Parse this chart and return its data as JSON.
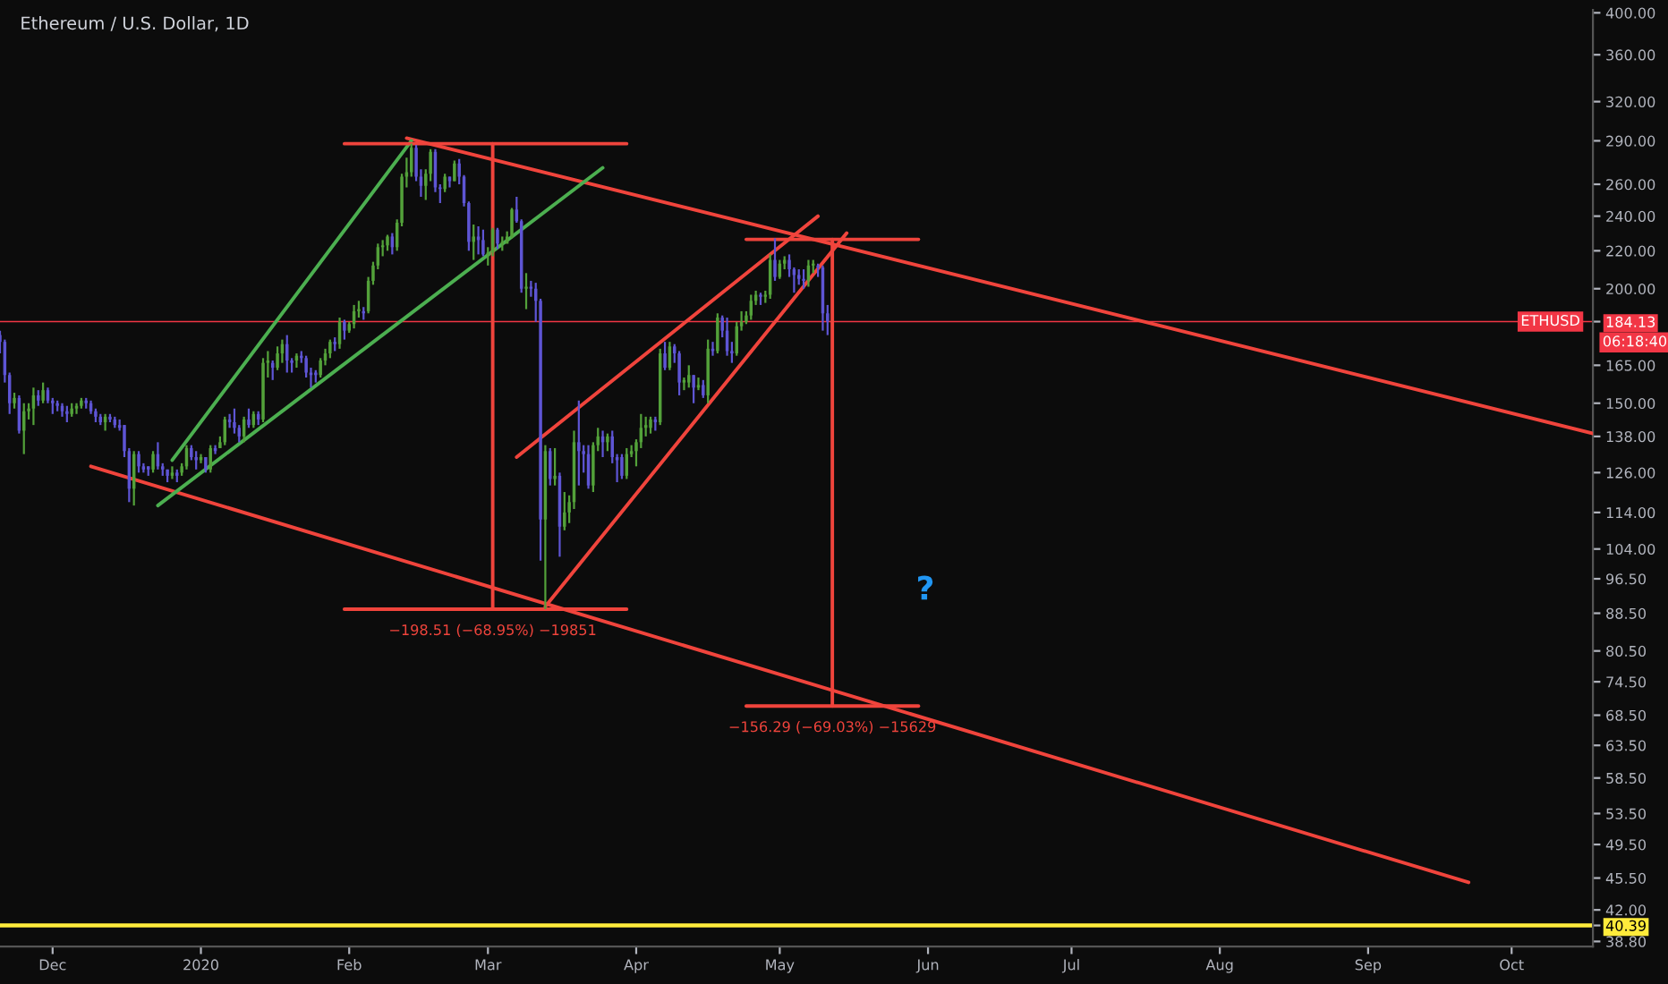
{
  "chart_data": {
    "type": "candlestick",
    "title": "Ethereum / U.S. Dollar, 1D",
    "x": [
      "2019-11-20",
      "2019-11-21",
      "2019-11-22",
      "2019-11-23",
      "2019-11-24",
      "2019-11-25",
      "2019-11-26",
      "2019-11-27",
      "2019-11-28",
      "2019-11-29",
      "2019-11-30",
      "2019-12-01",
      "2019-12-02",
      "2019-12-03",
      "2019-12-04",
      "2019-12-05",
      "2019-12-06",
      "2019-12-07",
      "2019-12-08",
      "2019-12-09",
      "2019-12-10",
      "2019-12-11",
      "2019-12-12",
      "2019-12-13",
      "2019-12-14",
      "2019-12-15",
      "2019-12-16",
      "2019-12-17",
      "2019-12-18",
      "2019-12-19",
      "2019-12-20",
      "2019-12-21",
      "2019-12-22",
      "2019-12-23",
      "2019-12-24",
      "2019-12-25",
      "2019-12-26",
      "2019-12-27",
      "2019-12-28",
      "2019-12-29",
      "2019-12-30",
      "2019-12-31",
      "2020-01-01",
      "2020-01-02",
      "2020-01-03",
      "2020-01-04",
      "2020-01-05",
      "2020-01-06",
      "2020-01-07",
      "2020-01-08",
      "2020-01-09",
      "2020-01-10",
      "2020-01-11",
      "2020-01-12",
      "2020-01-13",
      "2020-01-14",
      "2020-01-15",
      "2020-01-16",
      "2020-01-17",
      "2020-01-18",
      "2020-01-19",
      "2020-01-20",
      "2020-01-21",
      "2020-01-22",
      "2020-01-23",
      "2020-01-24",
      "2020-01-25",
      "2020-01-26",
      "2020-01-27",
      "2020-01-28",
      "2020-01-29",
      "2020-01-30",
      "2020-01-31",
      "2020-02-01",
      "2020-02-02",
      "2020-02-03",
      "2020-02-04",
      "2020-02-05",
      "2020-02-06",
      "2020-02-07",
      "2020-02-08",
      "2020-02-09",
      "2020-02-10",
      "2020-02-11",
      "2020-02-12",
      "2020-02-13",
      "2020-02-14",
      "2020-02-15",
      "2020-02-16",
      "2020-02-17",
      "2020-02-18",
      "2020-02-19",
      "2020-02-20",
      "2020-02-21",
      "2020-02-22",
      "2020-02-23",
      "2020-02-24",
      "2020-02-25",
      "2020-02-26",
      "2020-02-27",
      "2020-02-28",
      "2020-02-29",
      "2020-03-01",
      "2020-03-02",
      "2020-03-03",
      "2020-03-04",
      "2020-03-05",
      "2020-03-06",
      "2020-03-07",
      "2020-03-08",
      "2020-03-09",
      "2020-03-10",
      "2020-03-11",
      "2020-03-12",
      "2020-03-13",
      "2020-03-14",
      "2020-03-15",
      "2020-03-16",
      "2020-03-17",
      "2020-03-18",
      "2020-03-19",
      "2020-03-20",
      "2020-03-21",
      "2020-03-22",
      "2020-03-23",
      "2020-03-24",
      "2020-03-25",
      "2020-03-26",
      "2020-03-27",
      "2020-03-28",
      "2020-03-29",
      "2020-03-30",
      "2020-03-31",
      "2020-04-01",
      "2020-04-02",
      "2020-04-03",
      "2020-04-04",
      "2020-04-05",
      "2020-04-06",
      "2020-04-07",
      "2020-04-08",
      "2020-04-09",
      "2020-04-10",
      "2020-04-11",
      "2020-04-12",
      "2020-04-13",
      "2020-04-14",
      "2020-04-15",
      "2020-04-16",
      "2020-04-17",
      "2020-04-18",
      "2020-04-19",
      "2020-04-20",
      "2020-04-21",
      "2020-04-22",
      "2020-04-23",
      "2020-04-24",
      "2020-04-25",
      "2020-04-26",
      "2020-04-27",
      "2020-04-28",
      "2020-04-29",
      "2020-04-30",
      "2020-05-01",
      "2020-05-02",
      "2020-05-03",
      "2020-05-04",
      "2020-05-05",
      "2020-05-06",
      "2020-05-07",
      "2020-05-08",
      "2020-05-09",
      "2020-05-10",
      "2020-05-11"
    ],
    "ohlc": [
      [
        178,
        180,
        170,
        175
      ],
      [
        175,
        176,
        158,
        161
      ],
      [
        161,
        162,
        146,
        150
      ],
      [
        150,
        154,
        148,
        152
      ],
      [
        152,
        153,
        139,
        140
      ],
      [
        140,
        150,
        132,
        147
      ],
      [
        147,
        150,
        144,
        148
      ],
      [
        148,
        156,
        142,
        153
      ],
      [
        153,
        155,
        149,
        151
      ],
      [
        151,
        158,
        150,
        155
      ],
      [
        155,
        156,
        150,
        151
      ],
      [
        151,
        152,
        146,
        150
      ],
      [
        150,
        151,
        147,
        149
      ],
      [
        149,
        150,
        145,
        147
      ],
      [
        147,
        149,
        143,
        146
      ],
      [
        146,
        150,
        145,
        148
      ],
      [
        148,
        150,
        146,
        149
      ],
      [
        149,
        152,
        148,
        151
      ],
      [
        151,
        152,
        148,
        150
      ],
      [
        150,
        151,
        146,
        147
      ],
      [
        147,
        148,
        143,
        145
      ],
      [
        145,
        146,
        142,
        143
      ],
      [
        143,
        146,
        140,
        145
      ],
      [
        145,
        146,
        143,
        144
      ],
      [
        144,
        145,
        141,
        142
      ],
      [
        142,
        144,
        140,
        141
      ],
      [
        142,
        142,
        131,
        133
      ],
      [
        133,
        134,
        117,
        121
      ],
      [
        121,
        133,
        116,
        132
      ],
      [
        132,
        133,
        126,
        128
      ],
      [
        128,
        129,
        126,
        127
      ],
      [
        128,
        128,
        125,
        127
      ],
      [
        127,
        133,
        126,
        132
      ],
      [
        132,
        136,
        127,
        128
      ],
      [
        128,
        129,
        125,
        127
      ],
      [
        127,
        127,
        123,
        125
      ],
      [
        125,
        128,
        124,
        126
      ],
      [
        126,
        127,
        123,
        125
      ],
      [
        126,
        129,
        125,
        128
      ],
      [
        128,
        135,
        127,
        134
      ],
      [
        134,
        135,
        130,
        131
      ],
      [
        131,
        133,
        127,
        130
      ],
      [
        130,
        132,
        129,
        131
      ],
      [
        131,
        131,
        126,
        127
      ],
      [
        127,
        135,
        126,
        134
      ],
      [
        134,
        135,
        132,
        133
      ],
      [
        134,
        138,
        134,
        136
      ],
      [
        136,
        145,
        135,
        144
      ],
      [
        144,
        146,
        141,
        143
      ],
      [
        143,
        148,
        139,
        141
      ],
      [
        141,
        142,
        136,
        138
      ],
      [
        138,
        145,
        136,
        144
      ],
      [
        144,
        148,
        141,
        142
      ],
      [
        142,
        147,
        141,
        146
      ],
      [
        146,
        147,
        142,
        144
      ],
      [
        144,
        168,
        143,
        166
      ],
      [
        166,
        171,
        160,
        167
      ],
      [
        166,
        167,
        159,
        164
      ],
      [
        164,
        173,
        163,
        170
      ],
      [
        170,
        176,
        166,
        174
      ],
      [
        174,
        178,
        162,
        167
      ],
      [
        167,
        168,
        162,
        166
      ],
      [
        167,
        170,
        164,
        169
      ],
      [
        169,
        171,
        166,
        168
      ],
      [
        168,
        169,
        160,
        162
      ],
      [
        162,
        164,
        156,
        161
      ],
      [
        162,
        163,
        158,
        161
      ],
      [
        161,
        168,
        160,
        167
      ],
      [
        167,
        172,
        165,
        170
      ],
      [
        170,
        176,
        168,
        175
      ],
      [
        175,
        177,
        171,
        174
      ],
      [
        174,
        186,
        172,
        184
      ],
      [
        184,
        185,
        176,
        180
      ],
      [
        180,
        184,
        179,
        183
      ],
      [
        183,
        192,
        181,
        189
      ],
      [
        189,
        194,
        186,
        190
      ],
      [
        189,
        191,
        185,
        188
      ],
      [
        189,
        206,
        188,
        204
      ],
      [
        204,
        214,
        202,
        212
      ],
      [
        212,
        224,
        210,
        222
      ],
      [
        222,
        226,
        217,
        223
      ],
      [
        223,
        229,
        220,
        228
      ],
      [
        228,
        230,
        218,
        222
      ],
      [
        222,
        238,
        220,
        236
      ],
      [
        236,
        267,
        234,
        265
      ],
      [
        265,
        278,
        258,
        268
      ],
      [
        268,
        288,
        265,
        285
      ],
      [
        285,
        287,
        262,
        265
      ],
      [
        265,
        270,
        252,
        259
      ],
      [
        259,
        270,
        250,
        267
      ],
      [
        267,
        284,
        262,
        282
      ],
      [
        282,
        284,
        255,
        258
      ],
      [
        258,
        260,
        248,
        257
      ],
      [
        257,
        267,
        255,
        265
      ],
      [
        265,
        265,
        258,
        262
      ],
      [
        262,
        276,
        262,
        274
      ],
      [
        274,
        277,
        260,
        265
      ],
      [
        265,
        266,
        246,
        248
      ],
      [
        248,
        249,
        220,
        225
      ],
      [
        225,
        235,
        215,
        228
      ],
      [
        228,
        234,
        218,
        226
      ],
      [
        226,
        232,
        217,
        218
      ],
      [
        218,
        222,
        212,
        219
      ],
      [
        219,
        233,
        217,
        232
      ],
      [
        232,
        233,
        221,
        224
      ],
      [
        224,
        228,
        220,
        225
      ],
      [
        224,
        231,
        224,
        228
      ],
      [
        228,
        245,
        227,
        244
      ],
      [
        244,
        252,
        236,
        237
      ],
      [
        237,
        238,
        198,
        200
      ],
      [
        200,
        208,
        190,
        201
      ],
      [
        201,
        204,
        196,
        200
      ],
      [
        200,
        203,
        184,
        194
      ],
      [
        194,
        195,
        101,
        112
      ],
      [
        112,
        135,
        89.4,
        133
      ],
      [
        133,
        134,
        122,
        124
      ],
      [
        124,
        134,
        122,
        125
      ],
      [
        125,
        126,
        102,
        110
      ],
      [
        110,
        120,
        109,
        114
      ],
      [
        114,
        119,
        111,
        117
      ],
      [
        117,
        140,
        115,
        136
      ],
      [
        136,
        151,
        122,
        133
      ],
      [
        133,
        135,
        126,
        132
      ],
      [
        132,
        135,
        121,
        122
      ],
      [
        122,
        136,
        120,
        135
      ],
      [
        135,
        141,
        133,
        138
      ],
      [
        138,
        140,
        131,
        136
      ],
      [
        136,
        139,
        133,
        138
      ],
      [
        138,
        140,
        129,
        131
      ],
      [
        131,
        132,
        123,
        130
      ],
      [
        131,
        132,
        124,
        125
      ],
      [
        125,
        134,
        124,
        132
      ],
      [
        132,
        135,
        131,
        133
      ],
      [
        133,
        137,
        128,
        136
      ],
      [
        136,
        146,
        134,
        141
      ],
      [
        141,
        145,
        138,
        142
      ],
      [
        141,
        145,
        139,
        144
      ],
      [
        144,
        145,
        140,
        143
      ],
      [
        143,
        172,
        142,
        170
      ],
      [
        170,
        175,
        163,
        164
      ],
      [
        164,
        175,
        163,
        173
      ],
      [
        173,
        174,
        166,
        170
      ],
      [
        170,
        171,
        153,
        158
      ],
      [
        158,
        160,
        155,
        159
      ],
      [
        158,
        165,
        156,
        161
      ],
      [
        161,
        161,
        150,
        156
      ],
      [
        156,
        160,
        155,
        157
      ],
      [
        157,
        159,
        152,
        153
      ],
      [
        153,
        176,
        150,
        172
      ],
      [
        172,
        175,
        169,
        171
      ],
      [
        171,
        188,
        170,
        186
      ],
      [
        186,
        187,
        177,
        180
      ],
      [
        180,
        186,
        169,
        171
      ],
      [
        171,
        175,
        166,
        170
      ],
      [
        170,
        184,
        169,
        182
      ],
      [
        182,
        189,
        180,
        184
      ],
      [
        184,
        189,
        183,
        187
      ],
      [
        187,
        197,
        185,
        194
      ],
      [
        194,
        199,
        192,
        197
      ],
      [
        197,
        198,
        192,
        196
      ],
      [
        196,
        199,
        193,
        197
      ],
      [
        197,
        218,
        195,
        215
      ],
      [
        215,
        227,
        204,
        206
      ],
      [
        206,
        215,
        205,
        213
      ],
      [
        213,
        217,
        210,
        215
      ],
      [
        215,
        218,
        206,
        210
      ],
      [
        210,
        211,
        198,
        207
      ],
      [
        207,
        210,
        202,
        205
      ],
      [
        205,
        210,
        200,
        204
      ],
      [
        204,
        215,
        201,
        212
      ],
      [
        212,
        215,
        208,
        213
      ],
      [
        212,
        213,
        206,
        211
      ],
      [
        211,
        212,
        180,
        188
      ],
      [
        188,
        192,
        178,
        184.13
      ]
    ],
    "series": [
      {
        "type": "line",
        "color": "#f0443c",
        "x": [
          "2020-02-13",
          "2020-10-18"
        ],
        "values": [
          292,
          139
        ]
      },
      {
        "type": "line",
        "color": "#f0443c",
        "x": [
          "2019-12-09",
          "2020-09-22"
        ],
        "values": [
          128,
          45
        ]
      },
      {
        "type": "line",
        "color": "#4caf50",
        "x": [
          "2019-12-23",
          "2020-03-25"
        ],
        "values": [
          116,
          271
        ]
      },
      {
        "type": "line",
        "color": "#4caf50",
        "x": [
          "2019-12-26",
          "2020-02-14"
        ],
        "values": [
          130,
          290
        ]
      },
      {
        "type": "line",
        "color": "#f0443c",
        "x": [
          "2020-03-07",
          "2020-05-09"
        ],
        "values": [
          131,
          240
        ]
      },
      {
        "type": "line",
        "color": "#f0443c",
        "x": [
          "2020-03-13",
          "2020-05-15"
        ],
        "values": [
          90,
          230
        ]
      },
      {
        "type": "line",
        "color": "#f0443c",
        "x": [
          "2020-01-31",
          "2020-03-30"
        ],
        "values": [
          287.9,
          287.9
        ]
      },
      {
        "type": "line",
        "color": "#f0443c",
        "x": [
          "2020-01-31",
          "2020-03-30"
        ],
        "values": [
          89.4,
          89.4
        ]
      },
      {
        "type": "line",
        "color": "#f0443c",
        "x": [
          "2020-03-02",
          "2020-03-02"
        ],
        "values": [
          287.9,
          89.4
        ]
      },
      {
        "type": "line",
        "color": "#f0443c",
        "x": [
          "2020-04-24",
          "2020-05-30"
        ],
        "values": [
          226.4,
          226.4
        ]
      },
      {
        "type": "line",
        "color": "#f0443c",
        "x": [
          "2020-04-24",
          "2020-05-30"
        ],
        "values": [
          70.1,
          70.1
        ]
      },
      {
        "type": "line",
        "color": "#f0443c",
        "x": [
          "2020-05-12",
          "2020-05-12"
        ],
        "values": [
          226.4,
          70.1
        ]
      }
    ],
    "ref_lines": [
      {
        "axis": "y",
        "value": 184.13,
        "label": "ETHUSD",
        "color": "#f23645"
      },
      {
        "axis": "y",
        "value": 40.39,
        "color": "#ffeb3b"
      }
    ],
    "annotations": [
      {
        "text": "−198.51 (−68.95%) −19851",
        "x": "2020-03-02",
        "y": 89.4
      },
      {
        "text": "−156.29 (−69.03%) −15629",
        "x": "2020-05-12",
        "y": 70.1
      },
      "?",
      "06:18:40"
    ],
    "log": true,
    "xlim": [
      "2019-11-20",
      "2020-10-18"
    ],
    "xticks": [
      {
        "value": "2019-12-01",
        "label": "Dec"
      },
      {
        "value": "2020-01-01",
        "label": "2020"
      },
      {
        "value": "2020-02-01",
        "label": "Feb"
      },
      {
        "value": "2020-03-01",
        "label": "Mar"
      },
      {
        "value": "2020-04-01",
        "label": "Apr"
      },
      {
        "value": "2020-05-01",
        "label": "May"
      },
      {
        "value": "2020-06-01",
        "label": "Jun"
      },
      {
        "value": "2020-07-01",
        "label": "Jul"
      },
      {
        "value": "2020-08-01",
        "label": "Aug"
      },
      {
        "value": "2020-09-01",
        "label": "Sep"
      },
      {
        "value": "2020-10-01",
        "label": "Oct"
      }
    ],
    "ylim": [
      38.3,
      403
    ],
    "yticks": [
      {
        "value": 38.8,
        "label": "38.80"
      },
      {
        "value": 40.39,
        "label": "40.39"
      },
      {
        "value": 42,
        "label": "42.00"
      },
      {
        "value": 45.5,
        "label": "45.50"
      },
      {
        "value": 49.5,
        "label": "49.50"
      },
      {
        "value": 53.5,
        "label": "53.50"
      },
      {
        "value": 58.5,
        "label": "58.50"
      },
      {
        "value": 63.5,
        "label": "63.50"
      },
      {
        "value": 68.5,
        "label": "68.50"
      },
      {
        "value": 74.5,
        "label": "74.50"
      },
      {
        "value": 80.5,
        "label": "80.50"
      },
      {
        "value": 88.5,
        "label": "88.50"
      },
      {
        "value": 96.5,
        "label": "96.50"
      },
      {
        "value": 104,
        "label": "104.00"
      },
      {
        "value": 114,
        "label": "114.00"
      },
      {
        "value": 126,
        "label": "126.00"
      },
      {
        "value": 138,
        "label": "138.00"
      },
      {
        "value": 150,
        "label": "150.00"
      },
      {
        "value": 165,
        "label": "165.00"
      },
      {
        "value": 184.13,
        "label": "184.13"
      },
      {
        "value": 200,
        "label": "200.00"
      },
      {
        "value": 220,
        "label": "220.00"
      },
      {
        "value": 240,
        "label": "240.00"
      },
      {
        "value": 260,
        "label": "260.00"
      },
      {
        "value": 290,
        "label": "290.00"
      },
      {
        "value": 320,
        "label": "320.00"
      },
      {
        "value": 360,
        "label": "360.00"
      },
      {
        "value": 400,
        "label": "400.00"
      }
    ],
    "grid": false,
    "legend": false
  }
}
